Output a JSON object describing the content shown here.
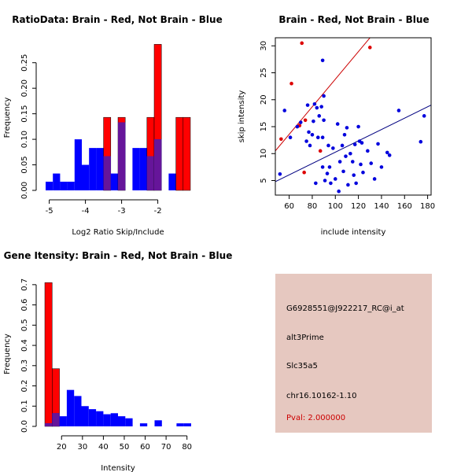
{
  "colors": {
    "red": "#ff0000",
    "blue": "#0000ff",
    "overlap": "#66159a",
    "panel_bg": "#e6c8c0",
    "pval": "#cc0000",
    "red_line": "#cc0000",
    "blue_line": "#000080",
    "red_point": "#dd0000",
    "blue_point": "#0000dd"
  },
  "chart_data": [
    {
      "id": "ratio",
      "type": "bar",
      "title": "RatioData: Brain - Red, Not Brain - Blue",
      "xlabel": "Log2 Ratio Skip/Include",
      "ylabel": "Frequency",
      "xlim": [
        -5.1,
        -1.1
      ],
      "ylim": [
        0,
        0.285
      ],
      "xticks": [
        -5,
        -4,
        -3,
        -2
      ],
      "yticks": [
        0.0,
        0.05,
        0.1,
        0.15,
        0.2,
        0.25
      ],
      "ytick_labels": [
        "0.00",
        "0.05",
        "0.10",
        "0.15",
        "0.20",
        "0.25"
      ],
      "bin_starts": [
        -5.1,
        -4.9,
        -4.7,
        -4.5,
        -4.3,
        -4.1,
        -3.9,
        -3.7,
        -3.5,
        -3.3,
        -3.1,
        -2.9,
        -2.7,
        -2.5,
        -2.3,
        -2.1,
        -1.9,
        -1.7,
        -1.5,
        -1.3
      ],
      "bin_width": 0.2,
      "series": [
        {
          "name": "Not Brain",
          "color": "blue",
          "values": [
            0.017,
            0.033,
            0.017,
            0.017,
            0.1,
            0.05,
            0.083,
            0.083,
            0.067,
            0.033,
            0.133,
            0,
            0.083,
            0.083,
            0.067,
            0.1,
            0,
            0.033,
            0,
            0
          ]
        },
        {
          "name": "Brain",
          "color": "red",
          "values": [
            0,
            0,
            0,
            0,
            0,
            0,
            0,
            0,
            0.143,
            0,
            0.143,
            0,
            0,
            0,
            0.143,
            0.286,
            0,
            0,
            0.143,
            0.143
          ]
        }
      ]
    },
    {
      "id": "scatter",
      "type": "scatter",
      "title": "Brain - Red, Not Brain - Blue",
      "xlabel": "include intensity",
      "ylabel": "skip intensity",
      "xlim": [
        48,
        183
      ],
      "ylim": [
        2.3,
        31.5
      ],
      "xticks": [
        60,
        80,
        100,
        120,
        140,
        160,
        180
      ],
      "yticks": [
        5,
        10,
        15,
        20,
        25,
        30
      ],
      "series": [
        {
          "name": "Brain",
          "color": "red_point",
          "points": [
            [
              53,
              12.7
            ],
            [
              62,
              23
            ],
            [
              69,
              15.2
            ],
            [
              71,
              30.5
            ],
            [
              74,
              16.2
            ],
            [
              73,
              6.5
            ],
            [
              87,
              10.5
            ],
            [
              130,
              29.7
            ]
          ]
        },
        {
          "name": "Not Brain",
          "color": "blue_point",
          "points": [
            [
              52,
              6.2
            ],
            [
              56,
              18
            ],
            [
              61,
              13
            ],
            [
              67,
              15
            ],
            [
              70,
              15.8
            ],
            [
              75,
              12.3
            ],
            [
              76,
              19
            ],
            [
              77,
              14
            ],
            [
              78,
              11.5
            ],
            [
              80,
              13.5
            ],
            [
              81,
              16
            ],
            [
              82,
              19.2
            ],
            [
              83,
              4.5
            ],
            [
              84,
              18.5
            ],
            [
              86,
              17
            ],
            [
              85,
              13
            ],
            [
              88,
              18.7
            ],
            [
              89,
              27.3
            ],
            [
              90,
              20.7
            ],
            [
              90,
              16.2
            ],
            [
              89,
              13
            ],
            [
              89,
              7.5
            ],
            [
              91,
              5
            ],
            [
              93,
              6.3
            ],
            [
              94,
              11.5
            ],
            [
              95,
              7.5
            ],
            [
              96,
              4.5
            ],
            [
              98,
              11
            ],
            [
              100,
              5.3
            ],
            [
              102,
              15.5
            ],
            [
              103,
              3
            ],
            [
              104,
              8.5
            ],
            [
              106,
              11.5
            ],
            [
              107,
              6.7
            ],
            [
              108,
              13.5
            ],
            [
              109,
              9.5
            ],
            [
              110,
              14.8
            ],
            [
              111,
              4.2
            ],
            [
              113,
              10
            ],
            [
              115,
              8.5
            ],
            [
              116,
              6
            ],
            [
              117,
              11.7
            ],
            [
              118,
              4.5
            ],
            [
              120,
              15
            ],
            [
              121,
              12.3
            ],
            [
              122,
              8
            ],
            [
              123,
              12
            ],
            [
              124,
              6.5
            ],
            [
              128,
              10.5
            ],
            [
              131,
              8.2
            ],
            [
              134,
              5.3
            ],
            [
              137,
              11.8
            ],
            [
              140,
              7.5
            ],
            [
              145,
              10.2
            ],
            [
              147,
              9.7
            ],
            [
              155,
              18
            ],
            [
              174,
              12.2
            ],
            [
              177,
              17
            ]
          ]
        }
      ],
      "lines": [
        {
          "name": "Brain fit",
          "color": "red_line",
          "from": [
            48,
            10.5
          ],
          "to": [
            132,
            32
          ]
        },
        {
          "name": "Not Brain fit",
          "color": "blue_line",
          "from": [
            48,
            4.8
          ],
          "to": [
            183,
            19
          ]
        }
      ]
    },
    {
      "id": "intensity",
      "type": "bar",
      "title": "Gene Itensity: Brain - Red, Not Brain - Blue",
      "xlabel": "Intensity",
      "ylabel": "Frequency",
      "xlim": [
        12,
        82
      ],
      "ylim": [
        0,
        0.715
      ],
      "xticks": [
        20,
        30,
        40,
        50,
        60,
        70,
        80
      ],
      "yticks": [
        0.0,
        0.1,
        0.2,
        0.3,
        0.4,
        0.5,
        0.6,
        0.7
      ],
      "ytick_labels": [
        "0.0",
        "0.1",
        "0.2",
        "0.3",
        "0.4",
        "0.5",
        "0.6",
        "0.7"
      ],
      "bin_starts": [
        12,
        15.5,
        19,
        22.5,
        26,
        29.5,
        33,
        36.5,
        40,
        43.5,
        47,
        50.5,
        54,
        57.5,
        61,
        64.5,
        68,
        71.5,
        75,
        78.5
      ],
      "bin_width": 3.5,
      "series": [
        {
          "name": "Not Brain",
          "color": "blue",
          "values": [
            0.015,
            0.065,
            0.05,
            0.18,
            0.15,
            0.1,
            0.085,
            0.075,
            0.06,
            0.065,
            0.05,
            0.04,
            0,
            0.015,
            0,
            0.03,
            0,
            0,
            0.015,
            0.015
          ]
        },
        {
          "name": "Brain",
          "color": "red",
          "values": [
            0.71,
            0.285,
            0,
            0,
            0,
            0,
            0,
            0,
            0,
            0,
            0,
            0,
            0,
            0,
            0,
            0,
            0,
            0,
            0,
            0
          ]
        }
      ]
    }
  ],
  "info": {
    "probe": "G6928551@J922217_RC@i_at",
    "event": "alt3Prime",
    "gene": "Slc35a5",
    "location": "chr16.10162-1.10",
    "pval": "Pval: 2.000000"
  }
}
